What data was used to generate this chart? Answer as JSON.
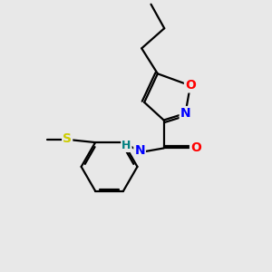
{
  "background_color": "#e8e8e8",
  "atom_colors": {
    "O": "#ff0000",
    "N": "#0000ff",
    "S": "#cccc00",
    "C": "#000000",
    "H": "#008080"
  },
  "bond_color": "#000000",
  "bond_width": 1.6,
  "figsize": [
    3.0,
    3.0
  ],
  "dpi": 100
}
